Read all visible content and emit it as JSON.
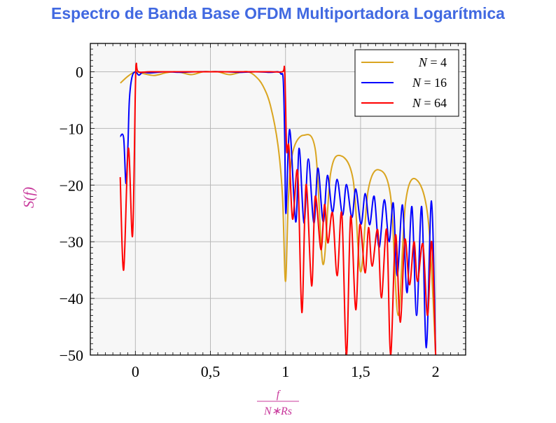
{
  "chart_data": {
    "type": "line",
    "title": "Espectro de Banda Base OFDM Multiportadora Logarítmica",
    "xlabel": {
      "numerator": "f",
      "denominator": "N∗Rs"
    },
    "ylabel": "S(f)",
    "xlim": [
      -0.3,
      2.2
    ],
    "ylim": [
      -50,
      5
    ],
    "xticks": [
      0,
      0.5,
      1,
      1.5,
      2
    ],
    "xtick_labels": [
      "0",
      "0,5",
      "1",
      "1,5",
      "2"
    ],
    "yticks": [
      0,
      -10,
      -20,
      -30,
      -40,
      -50
    ],
    "ytick_labels": [
      "0",
      "−10",
      "−20",
      "−30",
      "−40",
      "−50"
    ],
    "grid": true,
    "legend_position": "top-right",
    "colors": {
      "title": "#4169E1",
      "axis_label": "#C8389B",
      "background": "#F7F7F7",
      "grid": "#B8B8B8"
    },
    "series": [
      {
        "name": "N = 4",
        "label_parts": [
          "N",
          "= 4"
        ],
        "color": "#DAA520",
        "points": [
          [
            -0.1,
            -2
          ],
          [
            -0.05,
            -0.8
          ],
          [
            0,
            0
          ],
          [
            0.05,
            -0.3
          ],
          [
            0.125,
            -0.65
          ],
          [
            0.2,
            -0.2
          ],
          [
            0.25,
            0
          ],
          [
            0.3,
            -0.1
          ],
          [
            0.375,
            -0.5
          ],
          [
            0.45,
            0
          ],
          [
            0.5,
            0
          ],
          [
            0.55,
            0
          ],
          [
            0.625,
            -0.5
          ],
          [
            0.7,
            -0.1
          ],
          [
            0.75,
            0
          ],
          [
            0.8,
            -0.8
          ],
          [
            0.85,
            -2.5
          ],
          [
            0.9,
            -6
          ],
          [
            0.95,
            -13
          ],
          [
            0.98,
            -22
          ],
          [
            1.0,
            -37
          ],
          [
            1.02,
            -22
          ],
          [
            1.05,
            -14
          ],
          [
            1.12,
            -11.2
          ],
          [
            1.2,
            -14
          ],
          [
            1.25,
            -34
          ],
          [
            1.3,
            -18
          ],
          [
            1.365,
            -14.8
          ],
          [
            1.45,
            -19
          ],
          [
            1.5,
            -35.3
          ],
          [
            1.55,
            -21
          ],
          [
            1.62,
            -17.3
          ],
          [
            1.7,
            -22
          ],
          [
            1.75,
            -43
          ],
          [
            1.8,
            -23
          ],
          [
            1.87,
            -19
          ],
          [
            1.95,
            -26
          ],
          [
            2.0,
            -50
          ]
        ]
      },
      {
        "name": "N = 16",
        "label_parts": [
          "N",
          "= 16"
        ],
        "color": "#0000FF",
        "points": [
          [
            -0.101,
            -11.4
          ],
          [
            -0.078,
            -11.7
          ],
          [
            -0.063,
            -19.7
          ],
          [
            -0.05,
            -13.3
          ],
          [
            -0.04,
            -5
          ],
          [
            -0.023,
            -1
          ],
          [
            0,
            0
          ],
          [
            0.023,
            -0.6
          ],
          [
            0.05,
            -0.1
          ],
          [
            0.1,
            -0.2
          ],
          [
            0.2,
            0
          ],
          [
            0.3,
            -0.1
          ],
          [
            0.4,
            0
          ],
          [
            0.5,
            0
          ],
          [
            0.6,
            0
          ],
          [
            0.7,
            -0.1
          ],
          [
            0.8,
            0
          ],
          [
            0.9,
            -0.1
          ],
          [
            0.95,
            0
          ],
          [
            0.97,
            -0.4
          ],
          [
            0.985,
            -1.5
          ],
          [
            0.995,
            -12
          ],
          [
            1.003,
            -25
          ],
          [
            1.028,
            -10.2
          ],
          [
            1.068,
            -26.5
          ],
          [
            1.091,
            -13.5
          ],
          [
            1.123,
            -26.7
          ],
          [
            1.152,
            -15.4
          ],
          [
            1.189,
            -26.7
          ],
          [
            1.216,
            -17
          ],
          [
            1.251,
            -26.5
          ],
          [
            1.279,
            -18.3
          ],
          [
            1.313,
            -24.8
          ],
          [
            1.344,
            -19
          ],
          [
            1.38,
            -25.3
          ],
          [
            1.406,
            -19.9
          ],
          [
            1.442,
            -25.7
          ],
          [
            1.468,
            -20.7
          ],
          [
            1.503,
            -26.9
          ],
          [
            1.531,
            -21.5
          ],
          [
            1.56,
            -27
          ],
          [
            1.591,
            -22
          ],
          [
            1.623,
            -31
          ],
          [
            1.658,
            -22.6
          ],
          [
            1.69,
            -30
          ],
          [
            1.718,
            -23.2
          ],
          [
            1.744,
            -36
          ],
          [
            1.779,
            -23.5
          ],
          [
            1.809,
            -39
          ],
          [
            1.842,
            -23.8
          ],
          [
            1.873,
            -43
          ],
          [
            1.907,
            -23.8
          ],
          [
            1.938,
            -48.7
          ],
          [
            1.972,
            -22.8
          ],
          [
            2.0,
            -50
          ]
        ]
      },
      {
        "name": "N = 64",
        "label_parts": [
          "N",
          "= 64"
        ],
        "color": "#FF0000",
        "points": [
          [
            -0.101,
            -18.6
          ],
          [
            -0.078,
            -35
          ],
          [
            -0.047,
            -13.5
          ],
          [
            -0.019,
            -29
          ],
          [
            0,
            -3
          ],
          [
            0.006,
            1.4
          ],
          [
            0.02,
            0
          ],
          [
            0.1,
            0
          ],
          [
            0.3,
            0
          ],
          [
            0.5,
            0
          ],
          [
            0.7,
            0
          ],
          [
            0.9,
            0
          ],
          [
            0.98,
            0
          ],
          [
            0.993,
            0.7
          ],
          [
            1.0,
            -5
          ],
          [
            1.008,
            -14
          ],
          [
            1.023,
            -13.3
          ],
          [
            1.047,
            -26
          ],
          [
            1.081,
            -17.7
          ],
          [
            1.109,
            -42.5
          ],
          [
            1.137,
            -19.9
          ],
          [
            1.174,
            -37.8
          ],
          [
            1.198,
            -22
          ],
          [
            1.236,
            -31.4
          ],
          [
            1.26,
            -23.4
          ],
          [
            1.282,
            -30.2
          ],
          [
            1.313,
            -24.9
          ],
          [
            1.344,
            -36
          ],
          [
            1.375,
            -25
          ],
          [
            1.406,
            -50
          ],
          [
            1.434,
            -25.5
          ],
          [
            1.468,
            -42
          ],
          [
            1.495,
            -27
          ],
          [
            1.53,
            -35.5
          ],
          [
            1.553,
            -27.5
          ],
          [
            1.577,
            -34.3
          ],
          [
            1.614,
            -27.9
          ],
          [
            1.639,
            -39.9
          ],
          [
            1.674,
            -27.9
          ],
          [
            1.7,
            -50
          ],
          [
            1.733,
            -28.8
          ],
          [
            1.764,
            -44.2
          ],
          [
            1.795,
            -29.6
          ],
          [
            1.826,
            -37.6
          ],
          [
            1.856,
            -30
          ],
          [
            1.879,
            -37
          ],
          [
            1.915,
            -30.4
          ],
          [
            1.946,
            -43
          ],
          [
            1.974,
            -30
          ],
          [
            2.0,
            -50
          ]
        ]
      }
    ]
  }
}
